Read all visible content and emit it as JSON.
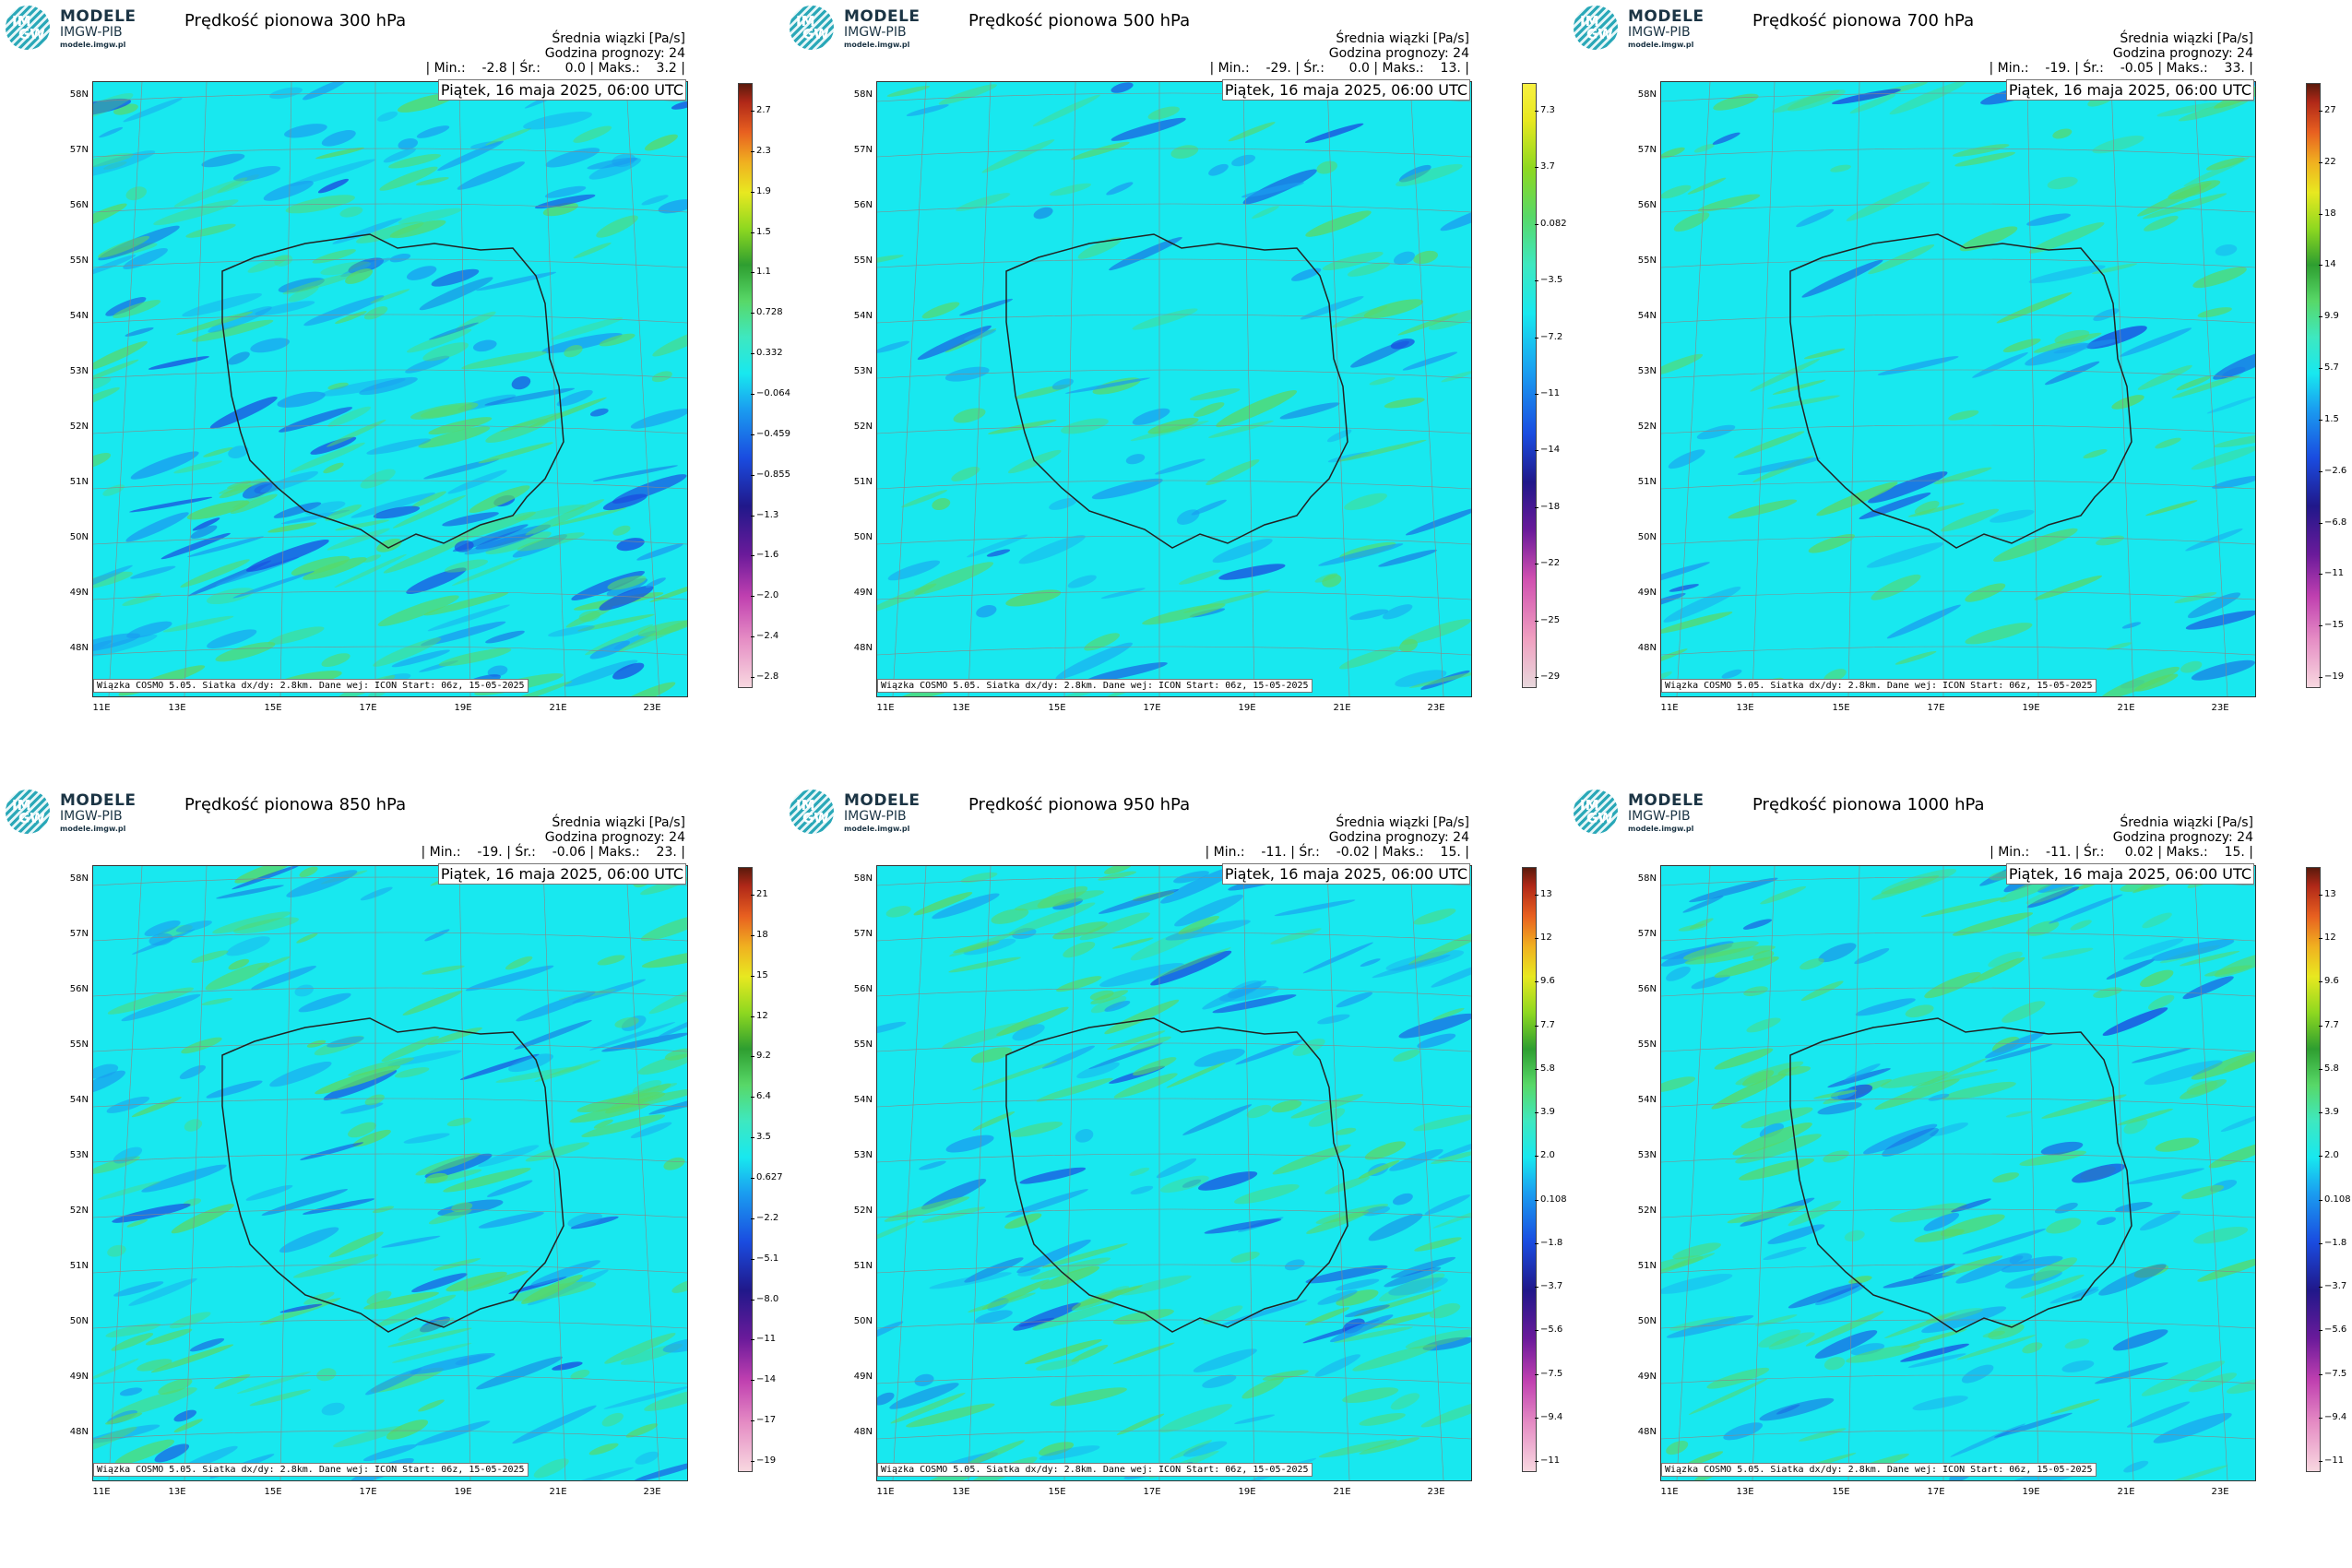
{
  "brand": {
    "logo_top": "IM",
    "logo_bottom": "GW",
    "name": "MODELE",
    "org": "IMGW-PIB",
    "url": "modele.imgw.pl"
  },
  "header": {
    "units": "Średnia wiązki [Pa/s]",
    "forecast": "Godzina prognozy: 24"
  },
  "date_label": "Piątek, 16 maja 2025, 06:00 UTC",
  "footer": "Wiązka COSMO 5.05. Siatka dx/dy: 2.8km. Dane wej: ICON Start: 06z, 15-05-2025",
  "lat_labels": [
    "58N",
    "57N",
    "56N",
    "55N",
    "54N",
    "53N",
    "52N",
    "51N",
    "50N",
    "49N",
    "48N"
  ],
  "lon_labels": [
    "11E",
    "13E",
    "15E",
    "17E",
    "19E",
    "21E",
    "23E"
  ],
  "colors": {
    "background_field": "#18e8ef",
    "positive_field": "#58d868",
    "negative_field": "#1a4ce0",
    "border": "#333333"
  },
  "panels": [
    {
      "title": "Prędkość pionowa 300 hPa",
      "stats": "| Min.:    -2.8 | Śr.:      0.0 | Maks.:    3.2 |",
      "ticks": [
        "2.7",
        "2.3",
        "1.9",
        "1.5",
        "1.1",
        "0.728",
        "0.332",
        "−0.064",
        "−0.459",
        "−0.855",
        "−1.3",
        "−1.6",
        "−2.0",
        "−2.4",
        "−2.8"
      ]
    },
    {
      "title": "Prędkość pionowa 500 hPa",
      "stats": "| Min.:    -29. | Śr.:      0.0 | Maks.:    13. |",
      "ticks": [
        "7.3",
        "3.7",
        "0.082",
        "−3.5",
        "−7.2",
        "−11",
        "−14",
        "−18",
        "−22",
        "−25",
        "−29"
      ]
    },
    {
      "title": "Prędkość pionowa 700 hPa",
      "stats": "| Min.:    -19. | Śr.:    -0.05 | Maks.:    33. |",
      "ticks": [
        "27",
        "22",
        "18",
        "14",
        "9.9",
        "5.7",
        "1.5",
        "−2.6",
        "−6.8",
        "−11",
        "−15",
        "−19"
      ]
    },
    {
      "title": "Prędkość pionowa 850 hPa",
      "stats": "| Min.:    -19. | Śr.:    -0.06 | Maks.:    23. |",
      "ticks": [
        "21",
        "18",
        "15",
        "12",
        "9.2",
        "6.4",
        "3.5",
        "0.627",
        "−2.2",
        "−5.1",
        "−8.0",
        "−11",
        "−14",
        "−17",
        "−19"
      ]
    },
    {
      "title": "Prędkość pionowa 950 hPa",
      "stats": "| Min.:    -11. | Śr.:    -0.02 | Maks.:    15. |",
      "ticks": [
        "13",
        "12",
        "9.6",
        "7.7",
        "5.8",
        "3.9",
        "2.0",
        "0.108",
        "−1.8",
        "−3.7",
        "−5.6",
        "−7.5",
        "−9.4",
        "−11"
      ]
    },
    {
      "title": "Prędkość pionowa 1000 hPa",
      "stats": "| Min.:    -11. | Śr.:     0.02 | Maks.:    15. |",
      "ticks": [
        "13",
        "12",
        "9.6",
        "7.7",
        "5.8",
        "3.9",
        "2.0",
        "0.108",
        "−1.8",
        "−3.7",
        "−5.6",
        "−7.5",
        "−9.4",
        "−11"
      ]
    }
  ]
}
